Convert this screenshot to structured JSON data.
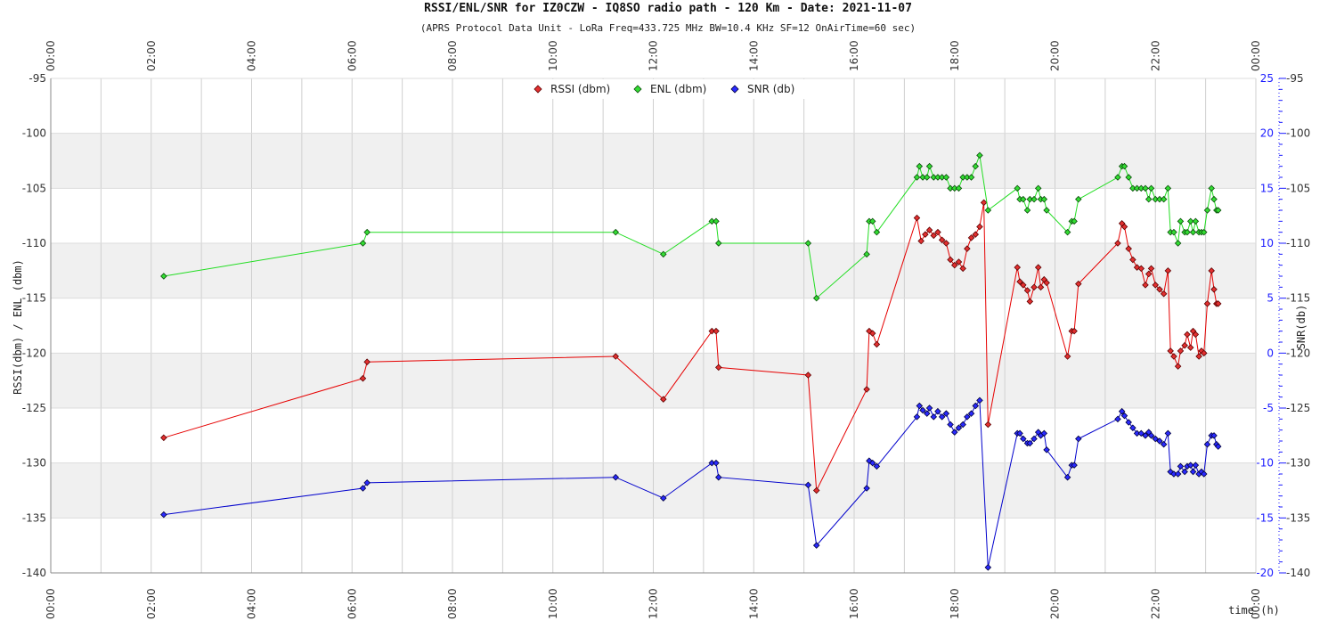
{
  "chart_data": {
    "type": "line",
    "title": "RSSI/ENL/SNR for IZ0CZW - IQ8SO radio path - 120 Km - Date: 2021-11-07",
    "subtitle": "(APRS Protocol Data Unit - LoRa Freq=433.725 MHz BW=10.4 KHz SF=12 OnAirTime=60 sec)",
    "xlabel": "time (h)",
    "ylabel_left": "RSSI(dbm) / ENL (dbm)",
    "ylabel_right": "SNR(db)",
    "x_range": [
      "00:00",
      "00:00"
    ],
    "x_ticks": [
      "00:00",
      "02:00",
      "04:00",
      "06:00",
      "08:00",
      "10:00",
      "12:00",
      "14:00",
      "16:00",
      "18:00",
      "20:00",
      "22:00",
      "00:00"
    ],
    "ylim_left": [
      -140,
      -95
    ],
    "ylim_right": [
      -20,
      25
    ],
    "y_ticks_left": [
      "-95",
      "-100",
      "-105",
      "-110",
      "-115",
      "-120",
      "-125",
      "-130",
      "-135",
      "-140"
    ],
    "y_ticks_right": [
      "25",
      "20",
      "15",
      "10",
      "5",
      "0",
      "-5",
      "-10",
      "-15",
      "-20"
    ],
    "y_ticks_right_outer": [
      "-95",
      "-100",
      "-105",
      "-110",
      "-115",
      "-120",
      "-125",
      "-130",
      "-135",
      "-140"
    ],
    "grid": true,
    "legend_position": "top-center",
    "colors": {
      "rssi": "#e60000",
      "enl": "#22dd22",
      "snr": "#0000cc"
    },
    "series": [
      {
        "name": "RSSI (dbm)",
        "axis": "left",
        "points": [
          [
            "02:15",
            -127.7
          ],
          [
            "06:13",
            -122.3
          ],
          [
            "06:18",
            -120.8
          ],
          [
            "11:15",
            -120.3
          ],
          [
            "12:12",
            -124.2
          ],
          [
            "13:10",
            -118
          ],
          [
            "13:15",
            -118
          ],
          [
            "13:18",
            -121.3
          ],
          [
            "15:05",
            -122
          ],
          [
            "15:15",
            -132.5
          ],
          [
            "16:15",
            -123.3
          ],
          [
            "16:18",
            -118
          ],
          [
            "16:22",
            -118.2
          ],
          [
            "16:27",
            -119.2
          ],
          [
            "17:15",
            -107.7
          ],
          [
            "17:20",
            -109.8
          ],
          [
            "17:25",
            -109.2
          ],
          [
            "17:30",
            -108.8
          ],
          [
            "17:35",
            -109.3
          ],
          [
            "17:40",
            -109
          ],
          [
            "17:45",
            -109.7
          ],
          [
            "17:50",
            -110
          ],
          [
            "17:55",
            -111.5
          ],
          [
            "18:00",
            -112
          ],
          [
            "18:05",
            -111.7
          ],
          [
            "18:10",
            -112.3
          ],
          [
            "18:15",
            -110.5
          ],
          [
            "18:20",
            -109.5
          ],
          [
            "18:25",
            -109.2
          ],
          [
            "18:30",
            -108.5
          ],
          [
            "18:35",
            -106.3
          ],
          [
            "18:40",
            -126.5
          ],
          [
            "19:15",
            -112.2
          ],
          [
            "19:18",
            -113.5
          ],
          [
            "19:22",
            -113.8
          ],
          [
            "19:27",
            -114.3
          ],
          [
            "19:30",
            -115.3
          ],
          [
            "19:35",
            -114
          ],
          [
            "19:40",
            -112.2
          ],
          [
            "19:43",
            -114
          ],
          [
            "19:47",
            -113.3
          ],
          [
            "19:50",
            -113.6
          ],
          [
            "20:15",
            -120.3
          ],
          [
            "20:20",
            -118
          ],
          [
            "20:23",
            -118
          ],
          [
            "20:28",
            -113.7
          ],
          [
            "21:15",
            -110
          ],
          [
            "21:20",
            -108.2
          ],
          [
            "21:23",
            -108.5
          ],
          [
            "21:28",
            -110.5
          ],
          [
            "21:33",
            -111.5
          ],
          [
            "21:38",
            -112.2
          ],
          [
            "21:43",
            -112.3
          ],
          [
            "21:48",
            -113.8
          ],
          [
            "21:52",
            -112.8
          ],
          [
            "21:55",
            -112.3
          ],
          [
            "22:00",
            -113.8
          ],
          [
            "22:05",
            -114.2
          ],
          [
            "22:10",
            -114.6
          ],
          [
            "22:15",
            -112.5
          ],
          [
            "22:18",
            -119.8
          ],
          [
            "22:22",
            -120.3
          ],
          [
            "22:27",
            -121.2
          ],
          [
            "22:30",
            -119.8
          ],
          [
            "22:35",
            -119.3
          ],
          [
            "22:38",
            -118.3
          ],
          [
            "22:42",
            -119.5
          ],
          [
            "22:45",
            -118
          ],
          [
            "22:48",
            -118.3
          ],
          [
            "22:52",
            -120.3
          ],
          [
            "22:55",
            -119.8
          ],
          [
            "22:58",
            -120
          ],
          [
            "23:02",
            -115.5
          ],
          [
            "23:07",
            -112.5
          ],
          [
            "23:10",
            -114.2
          ],
          [
            "23:13",
            -115.5
          ],
          [
            "23:15",
            -115.5
          ]
        ]
      },
      {
        "name": "ENL (dbm)",
        "axis": "left",
        "points": [
          [
            "02:15",
            -113
          ],
          [
            "06:13",
            -110
          ],
          [
            "06:18",
            -109
          ],
          [
            "11:15",
            -109
          ],
          [
            "12:12",
            -111
          ],
          [
            "13:10",
            -108
          ],
          [
            "13:15",
            -108
          ],
          [
            "13:18",
            -110
          ],
          [
            "15:05",
            -110
          ],
          [
            "15:15",
            -115
          ],
          [
            "16:15",
            -111
          ],
          [
            "16:18",
            -108
          ],
          [
            "16:22",
            -108
          ],
          [
            "16:27",
            -109
          ],
          [
            "17:15",
            -104
          ],
          [
            "17:18",
            -103
          ],
          [
            "17:22",
            -104
          ],
          [
            "17:27",
            -104
          ],
          [
            "17:30",
            -103
          ],
          [
            "17:35",
            -104
          ],
          [
            "17:40",
            -104
          ],
          [
            "17:45",
            -104
          ],
          [
            "17:50",
            -104
          ],
          [
            "17:55",
            -105
          ],
          [
            "18:00",
            -105
          ],
          [
            "18:05",
            -105
          ],
          [
            "18:10",
            -104
          ],
          [
            "18:15",
            -104
          ],
          [
            "18:20",
            -104
          ],
          [
            "18:25",
            -103
          ],
          [
            "18:30",
            -102
          ],
          [
            "18:40",
            -107
          ],
          [
            "19:15",
            -105
          ],
          [
            "19:18",
            -106
          ],
          [
            "19:22",
            -106
          ],
          [
            "19:27",
            -107
          ],
          [
            "19:30",
            -106
          ],
          [
            "19:35",
            -106
          ],
          [
            "19:40",
            -105
          ],
          [
            "19:43",
            -106
          ],
          [
            "19:47",
            -106
          ],
          [
            "19:50",
            -107
          ],
          [
            "20:15",
            -109
          ],
          [
            "20:20",
            -108
          ],
          [
            "20:23",
            -108
          ],
          [
            "20:28",
            -106
          ],
          [
            "21:15",
            -104
          ],
          [
            "21:20",
            -103
          ],
          [
            "21:23",
            -103
          ],
          [
            "21:28",
            -104
          ],
          [
            "21:33",
            -105
          ],
          [
            "21:38",
            -105
          ],
          [
            "21:43",
            -105
          ],
          [
            "21:48",
            -105
          ],
          [
            "21:52",
            -106
          ],
          [
            "21:55",
            -105
          ],
          [
            "22:00",
            -106
          ],
          [
            "22:05",
            -106
          ],
          [
            "22:10",
            -106
          ],
          [
            "22:15",
            -105
          ],
          [
            "22:18",
            -109
          ],
          [
            "22:22",
            -109
          ],
          [
            "22:27",
            -110
          ],
          [
            "22:30",
            -108
          ],
          [
            "22:35",
            -109
          ],
          [
            "22:38",
            -109
          ],
          [
            "22:42",
            -108
          ],
          [
            "22:45",
            -109
          ],
          [
            "22:48",
            -108
          ],
          [
            "22:52",
            -109
          ],
          [
            "22:55",
            -109
          ],
          [
            "22:58",
            -109
          ],
          [
            "23:02",
            -107
          ],
          [
            "23:07",
            -105
          ],
          [
            "23:10",
            -106
          ],
          [
            "23:13",
            -107
          ],
          [
            "23:15",
            -107
          ]
        ]
      },
      {
        "name": "SNR (db)",
        "axis": "right",
        "points": [
          [
            "02:15",
            -14.7
          ],
          [
            "06:13",
            -12.3
          ],
          [
            "06:18",
            -11.8
          ],
          [
            "11:15",
            -11.3
          ],
          [
            "12:12",
            -13.2
          ],
          [
            "13:10",
            -10
          ],
          [
            "13:15",
            -10
          ],
          [
            "13:18",
            -11.3
          ],
          [
            "15:05",
            -12
          ],
          [
            "15:15",
            -17.5
          ],
          [
            "16:15",
            -12.3
          ],
          [
            "16:18",
            -9.8
          ],
          [
            "16:22",
            -10
          ],
          [
            "16:27",
            -10.3
          ],
          [
            "17:15",
            -5.8
          ],
          [
            "17:18",
            -4.8
          ],
          [
            "17:22",
            -5.2
          ],
          [
            "17:27",
            -5.5
          ],
          [
            "17:30",
            -5
          ],
          [
            "17:35",
            -5.8
          ],
          [
            "17:40",
            -5.3
          ],
          [
            "17:45",
            -5.8
          ],
          [
            "17:50",
            -5.5
          ],
          [
            "17:55",
            -6.5
          ],
          [
            "18:00",
            -7.2
          ],
          [
            "18:05",
            -6.8
          ],
          [
            "18:10",
            -6.5
          ],
          [
            "18:15",
            -5.8
          ],
          [
            "18:20",
            -5.5
          ],
          [
            "18:25",
            -4.8
          ],
          [
            "18:30",
            -4.3
          ],
          [
            "18:40",
            -19.5
          ],
          [
            "19:15",
            -7.3
          ],
          [
            "19:18",
            -7.3
          ],
          [
            "19:22",
            -7.8
          ],
          [
            "19:27",
            -8.2
          ],
          [
            "19:30",
            -8.2
          ],
          [
            "19:35",
            -7.8
          ],
          [
            "19:40",
            -7.2
          ],
          [
            "19:43",
            -7.5
          ],
          [
            "19:47",
            -7.3
          ],
          [
            "19:50",
            -8.8
          ],
          [
            "20:15",
            -11.3
          ],
          [
            "20:20",
            -10.2
          ],
          [
            "20:23",
            -10.2
          ],
          [
            "20:28",
            -7.8
          ],
          [
            "21:15",
            -6
          ],
          [
            "21:20",
            -5.3
          ],
          [
            "21:23",
            -5.7
          ],
          [
            "21:28",
            -6.3
          ],
          [
            "21:33",
            -6.8
          ],
          [
            "21:38",
            -7.3
          ],
          [
            "21:43",
            -7.3
          ],
          [
            "21:48",
            -7.5
          ],
          [
            "21:52",
            -7.2
          ],
          [
            "21:55",
            -7.5
          ],
          [
            "22:00",
            -7.8
          ],
          [
            "22:05",
            -8
          ],
          [
            "22:10",
            -8.3
          ],
          [
            "22:15",
            -7.3
          ],
          [
            "22:18",
            -10.8
          ],
          [
            "22:22",
            -11
          ],
          [
            "22:27",
            -11
          ],
          [
            "22:30",
            -10.3
          ],
          [
            "22:35",
            -10.8
          ],
          [
            "22:38",
            -10.3
          ],
          [
            "22:42",
            -10.2
          ],
          [
            "22:45",
            -10.8
          ],
          [
            "22:48",
            -10.2
          ],
          [
            "22:52",
            -11
          ],
          [
            "22:55",
            -10.8
          ],
          [
            "22:58",
            -11
          ],
          [
            "23:02",
            -8.3
          ],
          [
            "23:07",
            -7.5
          ],
          [
            "23:10",
            -7.5
          ],
          [
            "23:13",
            -8.3
          ],
          [
            "23:15",
            -8.5
          ]
        ]
      }
    ]
  }
}
